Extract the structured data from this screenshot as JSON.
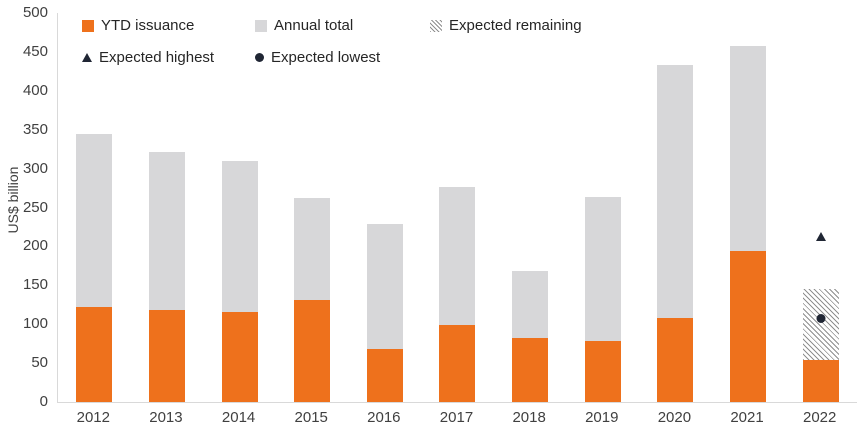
{
  "chart_data": {
    "type": "bar",
    "stacked": true,
    "title": "",
    "xlabel": "",
    "ylabel": "US$ billion",
    "ylim": [
      0,
      500
    ],
    "ytick_step": 50,
    "grid": false,
    "legend_position": "top-left-inside",
    "categories": [
      "2012",
      "2013",
      "2014",
      "2015",
      "2016",
      "2017",
      "2018",
      "2019",
      "2020",
      "2021",
      "2022"
    ],
    "series": [
      {
        "name": "YTD issuance",
        "color": "#ee711c",
        "values": [
          122,
          118,
          116,
          131,
          68,
          99,
          82,
          78,
          108,
          194,
          54
        ]
      },
      {
        "name": "Annual total",
        "color": "#d7d7d9",
        "values": [
          345,
          322,
          310,
          262,
          229,
          276,
          168,
          264,
          433,
          457,
          null
        ]
      },
      {
        "name": "Expected remaining",
        "pattern": "diagonal-hatch",
        "values": [
          null,
          null,
          null,
          null,
          null,
          null,
          null,
          null,
          null,
          null,
          91
        ],
        "expected_2022_total": 145
      }
    ],
    "markers": [
      {
        "name": "Expected highest",
        "shape": "triangle",
        "color": "#202634",
        "category": "2022",
        "value": 213
      },
      {
        "name": "Expected lowest",
        "shape": "circle",
        "color": "#202634",
        "category": "2022",
        "value": 107
      }
    ]
  },
  "legend": {
    "items": [
      {
        "label": "YTD issuance",
        "swatch": "orange-square"
      },
      {
        "label": "Annual total",
        "swatch": "gray-square"
      },
      {
        "label": "Expected remaining",
        "swatch": "hatch-square"
      },
      {
        "label": "Expected highest",
        "swatch": "triangle"
      },
      {
        "label": "Expected lowest",
        "swatch": "circle"
      }
    ]
  },
  "axes": {
    "y_title": "US$ billion",
    "y_ticks": [
      "0",
      "50",
      "100",
      "150",
      "200",
      "250",
      "300",
      "350",
      "400",
      "450",
      "500"
    ]
  },
  "colors": {
    "ytd": "#ee711c",
    "annual": "#d7d7d9",
    "hatch_line": "#8f8f8f",
    "marker": "#202634",
    "axis_line": "#d9d9d9",
    "text": "#404040"
  }
}
